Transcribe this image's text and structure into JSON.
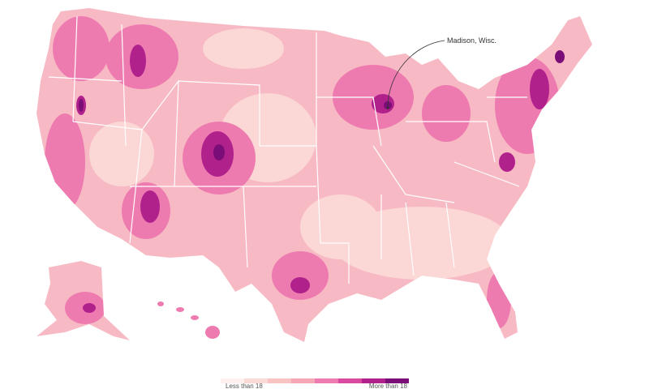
{
  "annotation": {
    "label": "Madison, Wisc."
  },
  "legend": {
    "colors": [
      "#fdf0ef",
      "#fbd9d6",
      "#f8c3c1",
      "#f5a7b8",
      "#ee7bb0",
      "#db4aa1",
      "#b0218c",
      "#7a0d77"
    ],
    "low_label": "Less than 18",
    "high_label": "More than 18"
  }
}
